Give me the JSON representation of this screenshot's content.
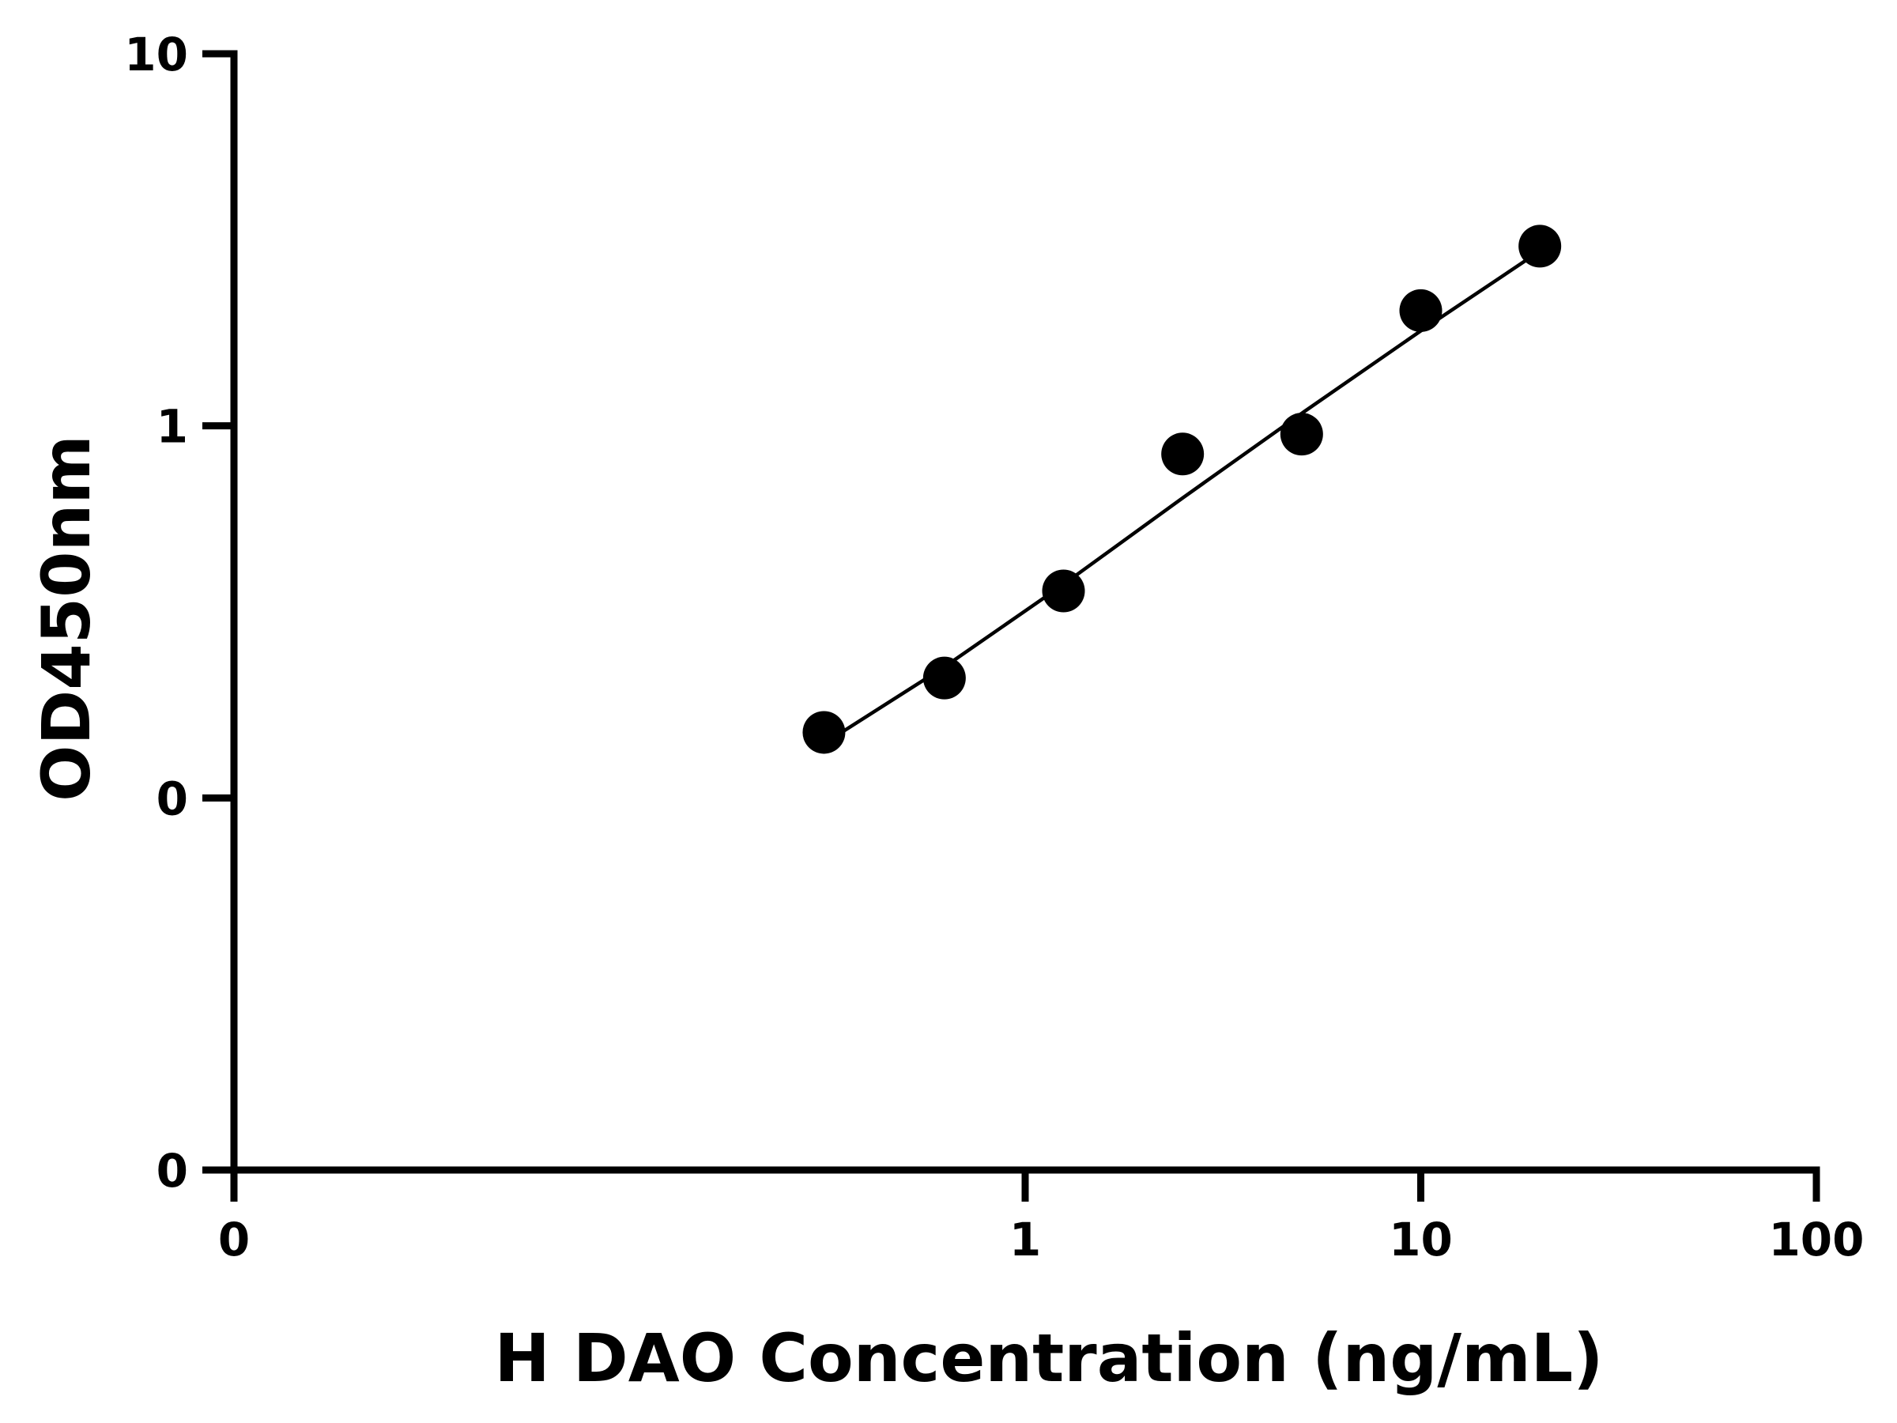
{
  "chart_data": {
    "type": "scatter",
    "title": "",
    "xlabel": "H DAO Concentration (ng/mL)",
    "ylabel": "OD450nm",
    "x_scale": "log",
    "y_scale": "log",
    "xlim": [
      0.01,
      100
    ],
    "ylim": [
      0.01,
      10
    ],
    "x_ticks": [
      {
        "value": 0.01,
        "label": "0"
      },
      {
        "value": 1,
        "label": "1"
      },
      {
        "value": 10,
        "label": "10"
      },
      {
        "value": 100,
        "label": "100"
      }
    ],
    "y_ticks": [
      {
        "value": 0.01,
        "label": "0"
      },
      {
        "value": 0.1,
        "label": "0"
      },
      {
        "value": 1,
        "label": "1"
      },
      {
        "value": 10,
        "label": "10"
      }
    ],
    "grid": false,
    "legend": "none",
    "series": [
      {
        "x": [
          0.31,
          0.625,
          1.25,
          2.5,
          5,
          10,
          20
        ],
        "y": [
          0.15,
          0.21,
          0.36,
          0.84,
          0.95,
          2.04,
          3.04
        ],
        "marker": "circle",
        "color": "#000000"
      }
    ],
    "fit_curve": {
      "x": [
        0.31,
        0.625,
        1.25,
        2.5,
        5,
        10,
        20
      ],
      "y": [
        0.14,
        0.225,
        0.375,
        0.64,
        1.08,
        1.8,
        2.95
      ],
      "color": "#000000"
    }
  }
}
